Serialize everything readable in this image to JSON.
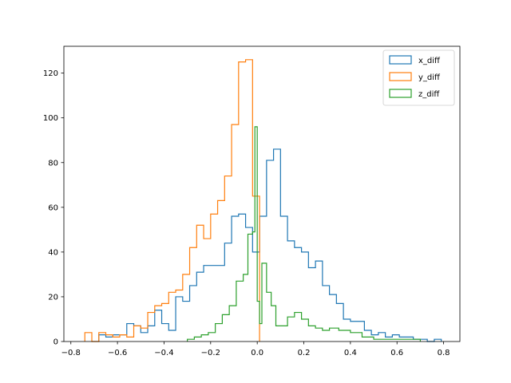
{
  "chart_data": {
    "type": "histogram-step",
    "title": "",
    "xlabel": "",
    "ylabel": "",
    "xlim": [
      -0.83,
      0.87
    ],
    "ylim": [
      0,
      132
    ],
    "x_ticks": [
      -0.8,
      -0.6,
      -0.4,
      -0.2,
      0.0,
      0.2,
      0.4,
      0.6,
      0.8
    ],
    "x_tick_labels": [
      "−0.8",
      "−0.6",
      "−0.4",
      "−0.2",
      "0.0",
      "0.2",
      "0.4",
      "0.6",
      "0.8"
    ],
    "y_ticks": [
      0,
      20,
      40,
      60,
      80,
      100,
      120
    ],
    "y_tick_labels": [
      "0",
      "20",
      "40",
      "60",
      "80",
      "100",
      "120"
    ],
    "legend_position": "top-right",
    "series": [
      {
        "name": "x_diff",
        "color": "#1f77b4",
        "edges": [
          -0.68,
          -0.65,
          -0.62,
          -0.59,
          -0.56,
          -0.53,
          -0.5,
          -0.47,
          -0.44,
          -0.41,
          -0.38,
          -0.35,
          -0.32,
          -0.29,
          -0.26,
          -0.23,
          -0.2,
          -0.17,
          -0.14,
          -0.11,
          -0.08,
          -0.05,
          -0.02,
          0.01,
          0.04,
          0.07,
          0.1,
          0.13,
          0.16,
          0.19,
          0.22,
          0.25,
          0.28,
          0.31,
          0.34,
          0.37,
          0.4,
          0.43,
          0.46,
          0.49,
          0.52,
          0.55,
          0.58,
          0.61,
          0.64,
          0.67,
          0.7,
          0.73,
          0.76,
          0.79
        ],
        "counts": [
          3,
          2,
          3,
          3,
          8,
          7,
          4,
          7,
          14,
          8,
          5,
          20,
          18,
          25,
          31,
          34,
          34,
          34,
          44,
          56,
          57,
          51,
          40,
          56,
          81,
          86,
          56,
          45,
          42,
          40,
          33,
          36,
          25,
          21,
          17,
          10,
          9,
          9,
          5,
          3,
          4,
          2,
          3,
          2,
          2,
          1,
          1,
          0,
          1
        ]
      },
      {
        "name": "y_diff",
        "color": "#ff7f0e",
        "edges": [
          -0.74,
          -0.71,
          -0.68,
          -0.65,
          -0.62,
          -0.59,
          -0.56,
          -0.53,
          -0.5,
          -0.47,
          -0.44,
          -0.41,
          -0.38,
          -0.35,
          -0.32,
          -0.29,
          -0.26,
          -0.23,
          -0.2,
          -0.17,
          -0.14,
          -0.11,
          -0.08,
          -0.05,
          -0.02,
          0.01
        ],
        "counts": [
          4,
          0,
          4,
          3,
          2,
          3,
          2,
          7,
          6,
          13,
          16,
          17,
          22,
          23,
          30,
          42,
          52,
          46,
          57,
          63,
          74,
          97,
          125,
          126,
          65
        ]
      },
      {
        "name": "z_diff",
        "color": "#2ca02c",
        "edges": [
          -0.3,
          -0.27,
          -0.24,
          -0.21,
          -0.18,
          -0.15,
          -0.12,
          -0.09,
          -0.06,
          -0.04,
          -0.02,
          -0.01,
          0.0,
          0.01,
          0.02,
          0.04,
          0.06,
          0.08,
          0.1,
          0.13,
          0.16,
          0.19,
          0.22,
          0.25,
          0.28,
          0.31,
          0.35,
          0.4,
          0.45,
          0.5,
          0.55,
          0.6,
          0.65,
          0.7
        ],
        "counts": [
          1,
          2,
          3,
          4,
          8,
          12,
          16,
          27,
          30,
          48,
          49,
          96,
          18,
          8,
          35,
          22,
          16,
          7,
          7,
          11,
          13,
          10,
          7,
          6,
          5,
          6,
          5,
          4,
          2,
          1,
          1,
          1,
          1
        ]
      }
    ]
  }
}
